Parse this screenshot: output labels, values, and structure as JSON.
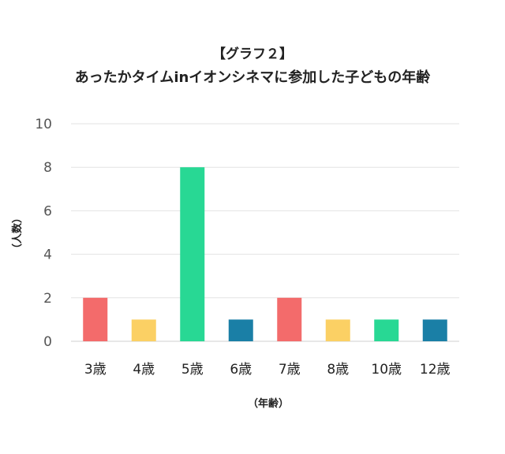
{
  "chart_data": {
    "type": "bar",
    "title": "【グラフ２】",
    "subtitle": "あったかタイムinイオンシネマに参加した子どもの年齢",
    "categories": [
      "3歳",
      "4歳",
      "5歳",
      "6歳",
      "7歳",
      "8歳",
      "10歳",
      "12歳"
    ],
    "values": [
      2,
      1,
      8,
      1,
      2,
      1,
      1,
      1
    ],
    "bar_colors": [
      "#f36b6b",
      "#fbd064",
      "#28d894",
      "#1a7fa6",
      "#f36b6b",
      "#fbd064",
      "#28d894",
      "#1a7fa6"
    ],
    "ylabel": "（人数）",
    "xlabel": "（年齢）",
    "ylim": [
      0,
      10
    ],
    "yticks": [
      0,
      2,
      4,
      6,
      8,
      10
    ],
    "grid": true,
    "legend": "none"
  }
}
